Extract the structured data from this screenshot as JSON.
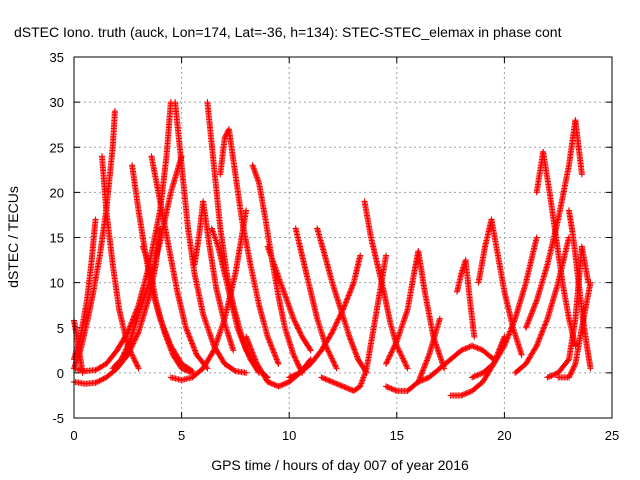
{
  "chart_data": {
    "type": "scatter",
    "title": "dSTEC Iono. truth (auck, Lon=174, Lat=-36, h=134): STEC-STEC_elemax in phase cont",
    "xlabel": "GPS time / hours of day 007 of year 2016",
    "ylabel": "dSTEC  / TECUs",
    "xlim": [
      0,
      25
    ],
    "ylim": [
      -5,
      35
    ],
    "xticks": [
      0,
      5,
      10,
      15,
      20,
      25
    ],
    "yticks": [
      -5,
      0,
      5,
      10,
      15,
      20,
      25,
      30,
      35
    ],
    "grid": true,
    "marker": "+",
    "color": "#ff0000",
    "series": [
      {
        "x": [
          0.0,
          0.3,
          0.6,
          0.9,
          1.2,
          1.5,
          1.8,
          1.9
        ],
        "y": [
          0.5,
          2.5,
          5.5,
          9.0,
          13.0,
          18.0,
          25.0,
          29.0
        ]
      },
      {
        "x": [
          0.0,
          0.3,
          0.6,
          0.8,
          1.0
        ],
        "y": [
          1.5,
          4.0,
          8.0,
          12.0,
          17.0
        ]
      },
      {
        "x": [
          0.0,
          0.1,
          0.2,
          0.3,
          0.4
        ],
        "y": [
          5.8,
          4.5,
          3.0,
          1.5,
          0.0
        ]
      },
      {
        "x": [
          0.0,
          0.5,
          1.0,
          1.5,
          2.0,
          2.5,
          3.0,
          3.5,
          3.8,
          4.0
        ],
        "y": [
          -1.0,
          -1.2,
          -1.1,
          -0.5,
          0.5,
          2.0,
          4.5,
          8.5,
          12.0,
          16.0
        ]
      },
      {
        "x": [
          0.0,
          0.5,
          1.0,
          1.5,
          2.0,
          2.5,
          3.0,
          3.5,
          4.0,
          4.3,
          4.5
        ],
        "y": [
          0.5,
          0.2,
          0.3,
          1.0,
          2.5,
          4.5,
          7.5,
          12.0,
          18.0,
          24.0,
          30.0
        ]
      },
      {
        "x": [
          1.3,
          1.5,
          1.8,
          2.1,
          2.5,
          3.0
        ],
        "y": [
          24.0,
          18.0,
          12.0,
          7.0,
          3.0,
          0.5
        ]
      },
      {
        "x": [
          1.8,
          2.2,
          2.6,
          3.0,
          3.5,
          4.0,
          4.5,
          5.0
        ],
        "y": [
          0.5,
          1.5,
          3.5,
          6.5,
          10.0,
          14.5,
          20.0,
          24.0
        ]
      },
      {
        "x": [
          2.7,
          3.0,
          3.3,
          3.6,
          4.0,
          4.5,
          5.0,
          5.5
        ],
        "y": [
          23.0,
          18.0,
          13.5,
          9.5,
          6.0,
          3.0,
          1.0,
          0.2
        ]
      },
      {
        "x": [
          3.2,
          3.5,
          3.8,
          4.2,
          4.6,
          5.0,
          5.5
        ],
        "y": [
          14.0,
          12.0,
          8.0,
          4.5,
          2.0,
          0.5,
          0.0
        ]
      },
      {
        "x": [
          3.6,
          4.0,
          4.4,
          4.8,
          5.2,
          5.7,
          6.2
        ],
        "y": [
          24.0,
          19.0,
          14.0,
          9.0,
          5.0,
          2.0,
          0.5
        ]
      },
      {
        "x": [
          4.7,
          5.0,
          5.3,
          5.6,
          6.0,
          6.5,
          7.0,
          7.5,
          8.0
        ],
        "y": [
          30.0,
          23.0,
          16.0,
          11.0,
          6.5,
          3.0,
          1.0,
          0.2,
          0.0
        ]
      },
      {
        "x": [
          4.5,
          5.0,
          5.5,
          6.0,
          6.5,
          7.0,
          7.5,
          8.0
        ],
        "y": [
          -0.5,
          -0.8,
          -0.5,
          0.5,
          2.5,
          6.0,
          11.0,
          18.0
        ]
      },
      {
        "x": [
          6.2,
          6.5,
          6.8,
          7.1,
          7.4,
          7.8,
          8.2,
          8.6
        ],
        "y": [
          30.0,
          23.0,
          16.0,
          11.0,
          7.5,
          4.0,
          1.5,
          0.0
        ]
      },
      {
        "x": [
          5.6,
          5.8,
          6.0,
          6.3,
          6.6,
          7.0,
          7.4
        ],
        "y": [
          12.0,
          15.0,
          19.0,
          14.0,
          9.5,
          5.5,
          2.5
        ]
      },
      {
        "x": [
          6.4,
          6.7,
          7.0,
          7.3,
          7.6,
          8.0,
          8.5,
          9.0
        ],
        "y": [
          16.0,
          14.0,
          11.0,
          8.0,
          5.0,
          2.5,
          0.5,
          -0.5
        ]
      },
      {
        "x": [
          6.8,
          7.0,
          7.2,
          7.5,
          7.8,
          8.2,
          8.6,
          9.0,
          9.5
        ],
        "y": [
          22.0,
          26.0,
          27.0,
          22.0,
          17.0,
          12.0,
          7.5,
          4.0,
          1.0
        ]
      },
      {
        "x": [
          8.3,
          8.6,
          8.9,
          9.2,
          9.5,
          9.8,
          10.2,
          10.6
        ],
        "y": [
          23.0,
          21.0,
          17.0,
          12.5,
          8.5,
          5.0,
          2.0,
          0.0
        ]
      },
      {
        "x": [
          8.0,
          8.5,
          9.0,
          9.5,
          10.0,
          10.5,
          11.0
        ],
        "y": [
          4.0,
          1.0,
          -1.0,
          -1.5,
          -1.0,
          0.0,
          1.5
        ]
      },
      {
        "x": [
          9.0,
          9.3,
          9.6,
          9.9,
          10.2,
          10.6,
          11.0
        ],
        "y": [
          14.0,
          12.0,
          10.0,
          8.0,
          6.0,
          4.0,
          2.5
        ]
      },
      {
        "x": [
          10.3,
          10.6,
          10.9,
          11.3,
          11.7,
          12.2
        ],
        "y": [
          16.0,
          13.0,
          10.0,
          6.0,
          3.0,
          0.5
        ]
      },
      {
        "x": [
          10.0,
          10.5,
          11.0,
          11.5,
          12.0,
          12.5,
          13.0,
          13.3
        ],
        "y": [
          -0.5,
          0.0,
          1.0,
          2.5,
          4.5,
          7.0,
          10.0,
          13.0
        ]
      },
      {
        "x": [
          11.3,
          11.6,
          12.0,
          12.4,
          12.8,
          13.2,
          13.6
        ],
        "y": [
          16.0,
          13.5,
          10.0,
          7.0,
          4.0,
          1.5,
          0.0
        ]
      },
      {
        "x": [
          11.5,
          12.0,
          12.5,
          13.0,
          13.3,
          13.6,
          14.0,
          14.5
        ],
        "y": [
          -0.5,
          -1.0,
          -1.5,
          -2.0,
          -1.5,
          0.5,
          6.0,
          13.0
        ]
      },
      {
        "x": [
          13.5,
          13.8,
          14.1,
          14.4,
          14.7,
          15.0,
          15.5
        ],
        "y": [
          19.0,
          15.0,
          12.0,
          9.0,
          5.5,
          3.0,
          0.5
        ]
      },
      {
        "x": [
          14.5,
          15.0,
          15.5,
          16.0,
          16.5,
          17.0
        ],
        "y": [
          -1.5,
          -2.0,
          -2.0,
          -1.0,
          2.0,
          6.0
        ]
      },
      {
        "x": [
          14.5,
          15.0,
          15.5,
          15.8,
          16.0,
          16.3,
          16.7,
          17.2
        ],
        "y": [
          1.0,
          3.5,
          7.0,
          11.0,
          13.5,
          9.0,
          4.0,
          0.5
        ]
      },
      {
        "x": [
          16.0,
          16.5,
          17.0,
          17.5,
          18.0,
          18.5,
          19.0,
          19.5
        ],
        "y": [
          -1.0,
          -0.5,
          0.5,
          1.5,
          2.5,
          3.0,
          2.5,
          1.5
        ]
      },
      {
        "x": [
          17.5,
          18.0,
          18.5,
          19.0,
          19.5,
          20.0
        ],
        "y": [
          -2.5,
          -2.5,
          -2.0,
          -1.0,
          1.0,
          4.0
        ]
      },
      {
        "x": [
          17.8,
          18.0,
          18.2,
          18.4,
          18.6
        ],
        "y": [
          9.0,
          11.0,
          12.5,
          8.0,
          4.0
        ]
      },
      {
        "x": [
          18.8,
          19.1,
          19.4,
          19.7,
          20.0,
          20.4,
          20.8
        ],
        "y": [
          10.0,
          14.0,
          17.0,
          13.0,
          9.0,
          5.0,
          2.0
        ]
      },
      {
        "x": [
          18.5,
          19.0,
          19.5,
          20.0,
          20.5,
          21.0,
          21.5
        ],
        "y": [
          -0.5,
          0.0,
          1.0,
          3.0,
          6.0,
          10.0,
          15.0
        ]
      },
      {
        "x": [
          20.5,
          21.0,
          21.5,
          22.0,
          22.5,
          23.0
        ],
        "y": [
          0.0,
          1.0,
          3.0,
          6.0,
          10.0,
          15.0
        ]
      },
      {
        "x": [
          21.5,
          21.8,
          22.1,
          22.4,
          22.7,
          23.0,
          23.3
        ],
        "y": [
          20.0,
          24.5,
          20.0,
          15.0,
          10.0,
          6.0,
          3.0
        ]
      },
      {
        "x": [
          21.0,
          21.5,
          22.0,
          22.5,
          23.0,
          23.3,
          23.6
        ],
        "y": [
          5.0,
          8.0,
          12.0,
          17.0,
          23.0,
          28.0,
          22.0
        ]
      },
      {
        "x": [
          22.0,
          22.5,
          23.0,
          23.3,
          23.6,
          23.9
        ],
        "y": [
          -0.5,
          0.0,
          1.5,
          6.0,
          14.0,
          10.0
        ]
      },
      {
        "x": [
          23.0,
          23.2,
          23.4,
          23.6,
          23.8,
          24.0
        ],
        "y": [
          18.0,
          15.0,
          11.0,
          7.0,
          3.5,
          0.5
        ]
      },
      {
        "x": [
          22.5,
          23.0,
          23.3,
          23.6,
          24.0
        ],
        "y": [
          -0.5,
          -0.5,
          1.0,
          5.0,
          10.0
        ]
      }
    ]
  }
}
